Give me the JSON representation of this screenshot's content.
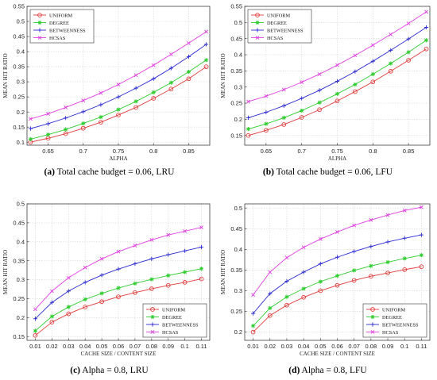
{
  "colors": {
    "UNIFORM": "#e03a3a",
    "DEGREE": "#2ecc2e",
    "BETWEENNESS": "#2a2ad0",
    "HCSAS": "#e040e0"
  },
  "markers": {
    "UNIFORM": "circle",
    "DEGREE": "asterisk",
    "BETWEENNESS": "plus",
    "HCSAS": "x"
  },
  "chart_data": [
    {
      "type": "line",
      "caption_label": "(a)",
      "caption_text": "Total cache budget = 0.06, LRU",
      "xlabel": "ALPHA",
      "ylabel": "MEAN HIT RATIO",
      "xlim": [
        0.62,
        0.88
      ],
      "ylim": [
        0.09,
        0.55
      ],
      "xticks": [
        0.65,
        0.7,
        0.75,
        0.8,
        0.85
      ],
      "xtick_labels": [
        "0.65",
        "0.7",
        "0.75",
        "0.8",
        "0.85"
      ],
      "yticks": [
        0.1,
        0.15,
        0.2,
        0.25,
        0.3,
        0.35,
        0.4,
        0.45,
        0.5,
        0.55
      ],
      "ytick_labels": [
        "0.1",
        "0.15",
        "0.2",
        "0.25",
        "0.3",
        "0.35",
        "0.4",
        "0.45",
        "0.5",
        "0.55"
      ],
      "grid": true,
      "legend": "top-left",
      "x": [
        0.625,
        0.65,
        0.675,
        0.7,
        0.725,
        0.75,
        0.775,
        0.8,
        0.825,
        0.85,
        0.875
      ],
      "series": [
        {
          "name": "UNIFORM",
          "values": [
            0.1,
            0.113,
            0.128,
            0.146,
            0.166,
            0.19,
            0.215,
            0.245,
            0.276,
            0.31,
            0.35
          ]
        },
        {
          "name": "DEGREE",
          "values": [
            0.11,
            0.125,
            0.142,
            0.162,
            0.183,
            0.208,
            0.235,
            0.265,
            0.297,
            0.333,
            0.372
          ]
        },
        {
          "name": "BETWEENNESS",
          "values": [
            0.145,
            0.161,
            0.18,
            0.201,
            0.224,
            0.25,
            0.279,
            0.31,
            0.345,
            0.383,
            0.424
          ]
        },
        {
          "name": "HCSAS",
          "values": [
            0.177,
            0.194,
            0.215,
            0.238,
            0.263,
            0.291,
            0.322,
            0.355,
            0.391,
            0.428,
            0.466
          ]
        }
      ]
    },
    {
      "type": "line",
      "caption_label": "(b)",
      "caption_text": "Total cache budget = 0.06, LFU",
      "xlabel": "ALPHA",
      "ylabel": "MEAN HIT RATIO",
      "xlim": [
        0.62,
        0.88
      ],
      "ylim": [
        0.12,
        0.55
      ],
      "xticks": [
        0.65,
        0.7,
        0.75,
        0.8,
        0.85
      ],
      "xtick_labels": [
        "0.65",
        "0.7",
        "0.75",
        "0.8",
        "0.85"
      ],
      "yticks": [
        0.15,
        0.2,
        0.25,
        0.3,
        0.35,
        0.4,
        0.45,
        0.5,
        0.55
      ],
      "ytick_labels": [
        "0.15",
        "0.2",
        "0.25",
        "0.3",
        "0.35",
        "0.4",
        "0.45",
        "0.5",
        "0.55"
      ],
      "grid": true,
      "legend": "top-left",
      "x": [
        0.625,
        0.65,
        0.675,
        0.7,
        0.725,
        0.75,
        0.775,
        0.8,
        0.825,
        0.85,
        0.875
      ],
      "series": [
        {
          "name": "UNIFORM",
          "values": [
            0.15,
            0.166,
            0.184,
            0.206,
            0.23,
            0.257,
            0.286,
            0.316,
            0.349,
            0.383,
            0.418
          ]
        },
        {
          "name": "DEGREE",
          "values": [
            0.17,
            0.186,
            0.205,
            0.227,
            0.252,
            0.279,
            0.308,
            0.34,
            0.373,
            0.408,
            0.445
          ]
        },
        {
          "name": "BETWEENNESS",
          "values": [
            0.205,
            0.222,
            0.242,
            0.265,
            0.29,
            0.318,
            0.348,
            0.38,
            0.414,
            0.449,
            0.485
          ]
        },
        {
          "name": "HCSAS",
          "values": [
            0.255,
            0.272,
            0.292,
            0.315,
            0.34,
            0.368,
            0.398,
            0.43,
            0.463,
            0.497,
            0.533
          ]
        }
      ]
    },
    {
      "type": "line",
      "caption_label": "(c)",
      "caption_text": "Alpha = 0.8, LRU",
      "xlabel": "CACHE SIZE / CONTENT SIZE",
      "ylabel": "MEAN HIT RATIO",
      "xlim": [
        0.005,
        0.115
      ],
      "ylim": [
        0.14,
        0.5
      ],
      "xticks": [
        0.01,
        0.02,
        0.03,
        0.04,
        0.05,
        0.06,
        0.07,
        0.08,
        0.09,
        0.1,
        0.11
      ],
      "xtick_labels": [
        "0.01",
        "0.02",
        "0.03",
        "0.04",
        "0.05",
        "0.06",
        "0.07",
        "0.08",
        "0.09",
        "0.1",
        "0.11"
      ],
      "yticks": [
        0.15,
        0.2,
        0.25,
        0.3,
        0.35,
        0.4,
        0.45,
        0.5
      ],
      "ytick_labels": [
        "0.15",
        "0.2",
        "0.25",
        "0.3",
        "0.35",
        "0.4",
        "0.45",
        "0.5"
      ],
      "grid": true,
      "legend": "bottom-right",
      "x": [
        0.01,
        0.02,
        0.03,
        0.04,
        0.05,
        0.06,
        0.07,
        0.08,
        0.09,
        0.1,
        0.11
      ],
      "series": [
        {
          "name": "UNIFORM",
          "values": [
            0.153,
            0.188,
            0.21,
            0.228,
            0.242,
            0.255,
            0.266,
            0.276,
            0.285,
            0.293,
            0.302
          ]
        },
        {
          "name": "DEGREE",
          "values": [
            0.165,
            0.203,
            0.228,
            0.248,
            0.264,
            0.278,
            0.29,
            0.301,
            0.311,
            0.32,
            0.329
          ]
        },
        {
          "name": "BETWEENNESS",
          "values": [
            0.197,
            0.24,
            0.27,
            0.293,
            0.312,
            0.328,
            0.342,
            0.355,
            0.366,
            0.376,
            0.386
          ]
        },
        {
          "name": "HCSAS",
          "values": [
            0.222,
            0.27,
            0.305,
            0.332,
            0.355,
            0.374,
            0.39,
            0.405,
            0.418,
            0.428,
            0.438
          ]
        }
      ]
    },
    {
      "type": "line",
      "caption_label": "(d)",
      "caption_text": "Alpha = 0.8, LFU",
      "xlabel": "CACHE SIZE / CONTENT SIZE",
      "ylabel": "MEAN HIT RATIO",
      "xlim": [
        0.005,
        0.115
      ],
      "ylim": [
        0.18,
        0.51
      ],
      "xticks": [
        0.01,
        0.02,
        0.03,
        0.04,
        0.05,
        0.06,
        0.07,
        0.08,
        0.09,
        0.1,
        0.11
      ],
      "xtick_labels": [
        "0.01",
        "0.02",
        "0.03",
        "0.04",
        "0.05",
        "0.06",
        "0.07",
        "0.08",
        "0.09",
        "0.1",
        "0.11"
      ],
      "yticks": [
        0.2,
        0.25,
        0.3,
        0.35,
        0.4,
        0.45,
        0.5
      ],
      "ytick_labels": [
        "0.2",
        "0.25",
        "0.3",
        "0.35",
        "0.4",
        "0.45",
        "0.5"
      ],
      "grid": true,
      "legend": "bottom-right",
      "x": [
        0.01,
        0.02,
        0.03,
        0.04,
        0.05,
        0.06,
        0.07,
        0.08,
        0.09,
        0.1,
        0.11
      ],
      "series": [
        {
          "name": "UNIFORM",
          "values": [
            0.2,
            0.24,
            0.265,
            0.284,
            0.3,
            0.313,
            0.325,
            0.335,
            0.343,
            0.351,
            0.358
          ]
        },
        {
          "name": "DEGREE",
          "values": [
            0.215,
            0.258,
            0.285,
            0.305,
            0.322,
            0.336,
            0.349,
            0.36,
            0.369,
            0.378,
            0.386
          ]
        },
        {
          "name": "BETWEENNESS",
          "values": [
            0.245,
            0.293,
            0.323,
            0.345,
            0.365,
            0.381,
            0.395,
            0.407,
            0.418,
            0.427,
            0.435
          ]
        },
        {
          "name": "HCSAS",
          "values": [
            0.29,
            0.345,
            0.38,
            0.405,
            0.425,
            0.442,
            0.458,
            0.471,
            0.483,
            0.494,
            0.502
          ]
        }
      ]
    }
  ]
}
